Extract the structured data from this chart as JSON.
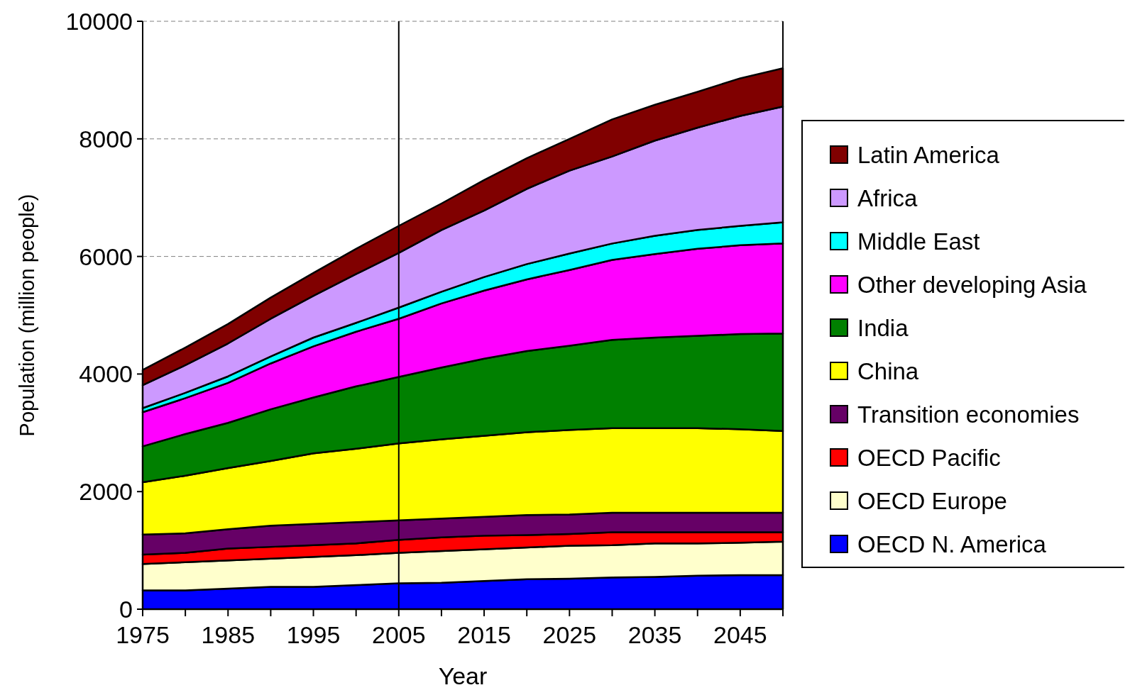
{
  "chart_data": {
    "type": "area",
    "stacked": true,
    "xlabel": "Year",
    "ylabel": "Population (million people)",
    "x": [
      1975,
      1980,
      1985,
      1990,
      1995,
      2000,
      2005,
      2010,
      2015,
      2020,
      2025,
      2030,
      2035,
      2040,
      2045,
      2050
    ],
    "xlim": [
      1975,
      2050
    ],
    "xticks": [
      1975,
      {
        "value": 1980,
        "label": null
      },
      1985,
      {
        "value": 1990,
        "label": null
      },
      1995,
      {
        "value": 2000,
        "label": null
      },
      2005,
      {
        "value": 2010,
        "label": null
      },
      2015,
      {
        "value": 2020,
        "label": null
      },
      2025,
      {
        "value": 2030,
        "label": null
      },
      2035,
      {
        "value": 2040,
        "label": null
      },
      2045,
      {
        "value": 2050,
        "label": null
      }
    ],
    "ylim": [
      0,
      10000
    ],
    "yticks": [
      0,
      2000,
      4000,
      6000,
      8000,
      10000
    ],
    "grid": "y",
    "legend": "right",
    "ref_lines": [
      {
        "axis": "x",
        "value": 2005,
        "color": "#000000"
      }
    ],
    "series": [
      {
        "name": "OECD N. America",
        "color": "#0000ff",
        "values": [
          320,
          320,
          350,
          380,
          380,
          410,
          440,
          450,
          480,
          510,
          520,
          540,
          550,
          570,
          580,
          580
        ]
      },
      {
        "name": "OECD Europe",
        "color": "#ffffcc",
        "values": [
          450,
          480,
          480,
          480,
          510,
          510,
          520,
          540,
          540,
          540,
          560,
          550,
          570,
          550,
          550,
          570
        ]
      },
      {
        "name": "OECD Pacific",
        "color": "#ff0000",
        "values": [
          160,
          160,
          200,
          200,
          200,
          200,
          220,
          230,
          230,
          210,
          200,
          220,
          190,
          190,
          180,
          160
        ]
      },
      {
        "name": "Transition economies",
        "color": "#660066",
        "values": [
          340,
          330,
          330,
          360,
          360,
          360,
          330,
          320,
          320,
          340,
          330,
          330,
          330,
          330,
          330,
          330
        ]
      },
      {
        "name": "China",
        "color": "#ffff00",
        "values": [
          890,
          980,
          1040,
          1100,
          1200,
          1250,
          1310,
          1350,
          1380,
          1410,
          1440,
          1440,
          1440,
          1440,
          1420,
          1390
        ]
      },
      {
        "name": "India",
        "color": "#008000",
        "values": [
          610,
          710,
          770,
          880,
          950,
          1060,
          1130,
          1220,
          1310,
          1380,
          1430,
          1500,
          1540,
          1570,
          1620,
          1660
        ]
      },
      {
        "name": "Other developing Asia",
        "color": "#ff00ff",
        "values": [
          580,
          610,
          680,
          780,
          870,
          930,
          990,
          1090,
          1160,
          1220,
          1290,
          1360,
          1420,
          1480,
          1510,
          1530
        ]
      },
      {
        "name": "Middle East",
        "color": "#00ffff",
        "values": [
          70,
          90,
          110,
          120,
          150,
          150,
          190,
          200,
          230,
          260,
          280,
          280,
          310,
          320,
          330,
          360
        ]
      },
      {
        "name": "Africa",
        "color": "#cc99ff",
        "values": [
          390,
          470,
          560,
          640,
          710,
          830,
          930,
          1050,
          1130,
          1280,
          1410,
          1480,
          1620,
          1740,
          1870,
          1970
        ]
      },
      {
        "name": "Latin America",
        "color": "#800000",
        "values": [
          260,
          300,
          330,
          360,
          390,
          430,
          460,
          450,
          520,
          520,
          540,
          630,
          610,
          610,
          640,
          650
        ]
      }
    ]
  }
}
